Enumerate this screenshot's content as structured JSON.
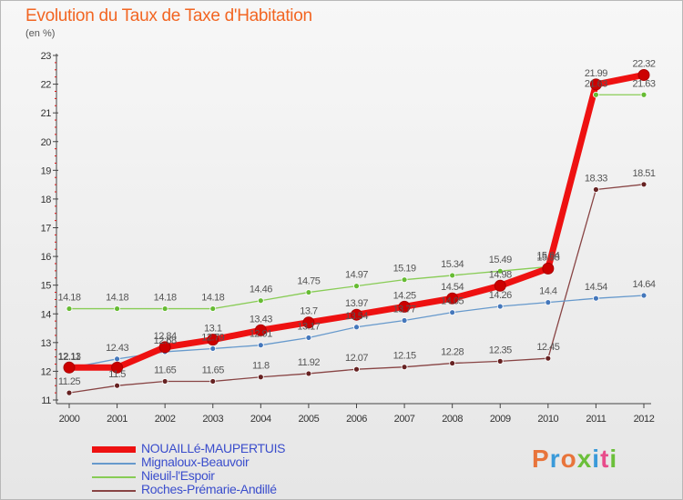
{
  "title": "Evolution du Taux de Taxe d'Habitation",
  "unit_label": "(en %)",
  "logo_text": "Proxiti",
  "logo_colors": [
    "#e8743b",
    "#3a9ad9",
    "#e8743b",
    "#6bbf3a",
    "#3a9ad9",
    "#e84c8b",
    "#6bbf3a"
  ],
  "chart_data": {
    "type": "line",
    "x": [
      "2000",
      "2001",
      "2002",
      "2003",
      "2004",
      "2005",
      "2006",
      "2007",
      "2008",
      "2009",
      "2010",
      "2011",
      "2012"
    ],
    "ylim": [
      11,
      23
    ],
    "yticks": [
      "11",
      "12",
      "13",
      "14",
      "15",
      "16",
      "17",
      "18",
      "19",
      "20",
      "21",
      "22",
      "23"
    ],
    "grid": false,
    "legend_position": "bottom-left",
    "series": [
      {
        "name": "NOUAILLé-MAUPERTUIS",
        "color": "#ee1111",
        "marker_color": "#cc0000",
        "width": 7,
        "values": [
          12.13,
          12.13,
          12.84,
          13.1,
          13.43,
          13.7,
          13.97,
          14.25,
          14.54,
          14.98,
          15.58,
          21.99,
          22.32
        ],
        "labels": [
          "12.13",
          "",
          "12.84",
          "13.1",
          "13.43",
          "13.7",
          "13.97",
          "14.25",
          "14.54",
          "14.98",
          "15.58",
          "21.99",
          "22.32"
        ]
      },
      {
        "name": "Mignaloux-Beauvoir",
        "color": "#6699cc",
        "marker_color": "#4477bb",
        "width": 1.3,
        "values": [
          12.11,
          12.43,
          12.68,
          12.79,
          12.91,
          13.17,
          13.54,
          13.77,
          14.05,
          14.26,
          14.4,
          14.54,
          14.64
        ],
        "labels": [
          "12.11",
          "12.43",
          "12.68",
          "12.79",
          "12.91",
          "13.17",
          "13.54",
          "13.77",
          "14.05",
          "14.26",
          "14.4",
          "14.54",
          "14.64"
        ]
      },
      {
        "name": "Nieuil-l'Espoir",
        "color": "#88cc55",
        "marker_color": "#66bb33",
        "width": 1.3,
        "values": [
          14.18,
          14.18,
          14.18,
          14.18,
          14.46,
          14.75,
          14.97,
          15.19,
          15.34,
          15.49,
          15.64,
          21.63,
          21.63
        ],
        "labels": [
          "14.18",
          "14.18",
          "14.18",
          "14.18",
          "14.46",
          "14.75",
          "14.97",
          "15.19",
          "15.34",
          "15.49",
          "15.64",
          "21.63",
          "21.63"
        ]
      },
      {
        "name": "Roches-Prémarie-Andillé",
        "color": "#884444",
        "marker_color": "#662222",
        "width": 1.3,
        "values": [
          11.25,
          11.5,
          11.65,
          11.65,
          11.8,
          11.92,
          12.07,
          12.15,
          12.28,
          12.35,
          12.45,
          18.33,
          18.51
        ],
        "labels": [
          "11.25",
          "11.5",
          "11.65",
          "11.65",
          "11.8",
          "11.92",
          "12.07",
          "12.15",
          "12.28",
          "12.35",
          "12.45",
          "18.33",
          "18.51"
        ]
      }
    ]
  }
}
